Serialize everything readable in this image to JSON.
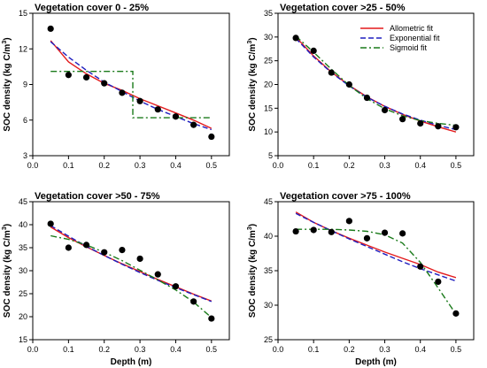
{
  "figure": {
    "xlabel": "Depth (m)",
    "ylabel_main": "SOC density (kg C/m",
    "ylabel_sup": "3",
    "ylabel_close": ")"
  },
  "legend": {
    "entries": [
      {
        "label": "Allometric fit",
        "color": "#e31a1c",
        "dash": "solid"
      },
      {
        "label": "Exponential fit",
        "color": "#1f1fbf",
        "dash": "dashed"
      },
      {
        "label": "Sigmoid fit",
        "color": "#1a7a1a",
        "dash": "dashdot"
      }
    ],
    "placement": "top-right of panel 2"
  },
  "chart_data": [
    {
      "type": "scatter",
      "title": "Vegetation cover 0 - 25%",
      "xlabel": "",
      "ylabel": "SOC density (kg C/m3)",
      "xlim": [
        0.0,
        0.55
      ],
      "ylim": [
        3,
        15
      ],
      "xticks": [
        "0.0",
        "0.1",
        "0.2",
        "0.3",
        "0.4",
        "0.5"
      ],
      "yticks": [
        "3",
        "6",
        "9",
        "12",
        "15"
      ],
      "points": {
        "x": [
          0.05,
          0.1,
          0.15,
          0.2,
          0.25,
          0.3,
          0.35,
          0.4,
          0.45,
          0.5
        ],
        "y": [
          13.7,
          9.8,
          9.6,
          9.1,
          8.3,
          7.6,
          6.9,
          6.3,
          5.6,
          4.6
        ]
      },
      "series": [
        {
          "name": "Allometric fit",
          "x": [
            0.05,
            0.1,
            0.15,
            0.2,
            0.25,
            0.3,
            0.35,
            0.4,
            0.45,
            0.5
          ],
          "y": [
            12.7,
            10.9,
            9.9,
            9.1,
            8.5,
            7.8,
            7.2,
            6.6,
            6.0,
            5.3
          ]
        },
        {
          "name": "Exponential fit",
          "x": [
            0.05,
            0.1,
            0.15,
            0.2,
            0.25,
            0.3,
            0.35,
            0.4,
            0.45,
            0.5
          ],
          "y": [
            12.6,
            11.3,
            10.2,
            9.2,
            8.4,
            7.6,
            6.9,
            6.3,
            5.7,
            5.2
          ]
        },
        {
          "name": "Sigmoid fit",
          "x": [
            0.05,
            0.28,
            0.28,
            0.5
          ],
          "y": [
            10.1,
            10.1,
            6.2,
            6.2
          ]
        }
      ]
    },
    {
      "type": "scatter",
      "title": "Vegetation cover >25 - 50%",
      "xlabel": "",
      "ylabel": "SOC density (kg C/m3)",
      "xlim": [
        0.0,
        0.55
      ],
      "ylim": [
        5,
        35
      ],
      "xticks": [
        "0.0",
        "0.1",
        "0.2",
        "0.3",
        "0.4",
        "0.5"
      ],
      "yticks": [
        "5",
        "10",
        "15",
        "20",
        "25",
        "30",
        "35"
      ],
      "points": {
        "x": [
          0.05,
          0.1,
          0.15,
          0.2,
          0.25,
          0.3,
          0.35,
          0.4,
          0.45,
          0.5
        ],
        "y": [
          29.8,
          27.1,
          22.5,
          20.0,
          17.2,
          14.6,
          12.7,
          11.8,
          11.2,
          11.0
        ]
      },
      "series": [
        {
          "name": "Allometric fit",
          "x": [
            0.05,
            0.1,
            0.15,
            0.2,
            0.25,
            0.3,
            0.35,
            0.4,
            0.45,
            0.5
          ],
          "y": [
            30.0,
            26.0,
            22.6,
            19.8,
            17.4,
            15.4,
            13.7,
            12.3,
            11.1,
            10.0
          ]
        },
        {
          "name": "Exponential fit",
          "x": [
            0.05,
            0.1,
            0.15,
            0.2,
            0.25,
            0.3,
            0.35,
            0.4,
            0.45,
            0.5
          ],
          "y": [
            29.7,
            25.8,
            22.5,
            19.7,
            17.3,
            15.4,
            13.8,
            12.5,
            11.4,
            10.5
          ]
        },
        {
          "name": "Sigmoid fit",
          "x": [
            0.05,
            0.1,
            0.15,
            0.2,
            0.25,
            0.3,
            0.35,
            0.4,
            0.45,
            0.5
          ],
          "y": [
            30.2,
            26.8,
            23.2,
            19.8,
            17.0,
            14.9,
            13.4,
            12.4,
            11.8,
            11.4
          ]
        }
      ]
    },
    {
      "type": "scatter",
      "title": "Vegetation cover >50 - 75%",
      "xlabel": "Depth (m)",
      "ylabel": "SOC density (kg C/m3)",
      "xlim": [
        0.0,
        0.55
      ],
      "ylim": [
        15,
        45
      ],
      "xticks": [
        "0.0",
        "0.1",
        "0.2",
        "0.3",
        "0.4",
        "0.5"
      ],
      "yticks": [
        "15",
        "20",
        "25",
        "30",
        "35",
        "40",
        "45"
      ],
      "points": {
        "x": [
          0.05,
          0.1,
          0.15,
          0.2,
          0.25,
          0.3,
          0.35,
          0.4,
          0.45,
          0.5
        ],
        "y": [
          40.2,
          35.0,
          35.6,
          34.0,
          34.5,
          32.6,
          29.2,
          26.6,
          23.3,
          19.6
        ]
      },
      "series": [
        {
          "name": "Allometric fit",
          "x": [
            0.05,
            0.1,
            0.15,
            0.2,
            0.25,
            0.3,
            0.35,
            0.4,
            0.45,
            0.5
          ],
          "y": [
            39.5,
            37.2,
            35.2,
            33.3,
            31.5,
            29.8,
            28.1,
            26.5,
            24.9,
            23.4
          ]
        },
        {
          "name": "Exponential fit",
          "x": [
            0.05,
            0.1,
            0.15,
            0.2,
            0.25,
            0.3,
            0.35,
            0.4,
            0.45,
            0.5
          ],
          "y": [
            39.8,
            37.5,
            35.3,
            33.3,
            31.4,
            29.6,
            27.9,
            26.3,
            24.8,
            23.3
          ]
        },
        {
          "name": "Sigmoid fit",
          "x": [
            0.05,
            0.1,
            0.15,
            0.2,
            0.25,
            0.3,
            0.35,
            0.4,
            0.45,
            0.5
          ],
          "y": [
            37.6,
            36.8,
            35.6,
            34.0,
            32.2,
            30.1,
            28.0,
            25.8,
            23.2,
            19.8
          ]
        }
      ]
    },
    {
      "type": "scatter",
      "title": "Vegetation cover >75 - 100%",
      "xlabel": "Depth (m)",
      "ylabel": "SOC density (kg C/m3)",
      "xlim": [
        0.0,
        0.55
      ],
      "ylim": [
        25,
        45
      ],
      "xticks": [
        "0.0",
        "0.1",
        "0.2",
        "0.3",
        "0.4",
        "0.5"
      ],
      "yticks": [
        "25",
        "30",
        "35",
        "40",
        "45"
      ],
      "points": {
        "x": [
          0.05,
          0.1,
          0.15,
          0.2,
          0.25,
          0.3,
          0.35,
          0.4,
          0.45,
          0.5
        ],
        "y": [
          40.7,
          40.9,
          40.6,
          42.2,
          39.7,
          40.5,
          40.4,
          35.6,
          33.4,
          28.8
        ]
      },
      "series": [
        {
          "name": "Allometric fit",
          "x": [
            0.05,
            0.1,
            0.15,
            0.2,
            0.25,
            0.3,
            0.35,
            0.4,
            0.45,
            0.5
          ],
          "y": [
            43.5,
            42.0,
            40.8,
            39.7,
            38.7,
            37.7,
            36.8,
            35.9,
            34.8,
            34.0
          ]
        },
        {
          "name": "Exponential fit",
          "x": [
            0.05,
            0.1,
            0.15,
            0.2,
            0.25,
            0.3,
            0.35,
            0.4,
            0.45,
            0.5
          ],
          "y": [
            43.3,
            42.0,
            40.8,
            39.6,
            38.5,
            37.4,
            36.3,
            35.3,
            34.4,
            33.5
          ]
        },
        {
          "name": "Sigmoid fit",
          "x": [
            0.05,
            0.1,
            0.15,
            0.2,
            0.25,
            0.3,
            0.35,
            0.4,
            0.45,
            0.5
          ],
          "y": [
            41.0,
            41.0,
            41.0,
            40.9,
            40.7,
            40.2,
            39.0,
            36.2,
            32.5,
            28.7
          ]
        }
      ]
    }
  ]
}
